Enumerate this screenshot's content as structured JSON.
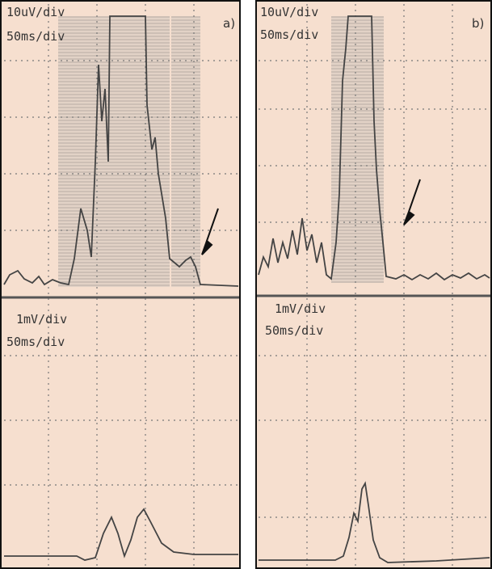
{
  "panels": [
    {
      "label": "a)",
      "upper": {
        "scale": "10uV/div",
        "time": "50ms/div"
      },
      "lower": {
        "scale": "1mV/div",
        "time": "50ms/div"
      }
    },
    {
      "label": "b)",
      "upper": {
        "scale": "10uV/div",
        "time": "50ms/div"
      },
      "lower": {
        "scale": "1mV/div",
        "time": "50ms/div"
      }
    }
  ]
}
